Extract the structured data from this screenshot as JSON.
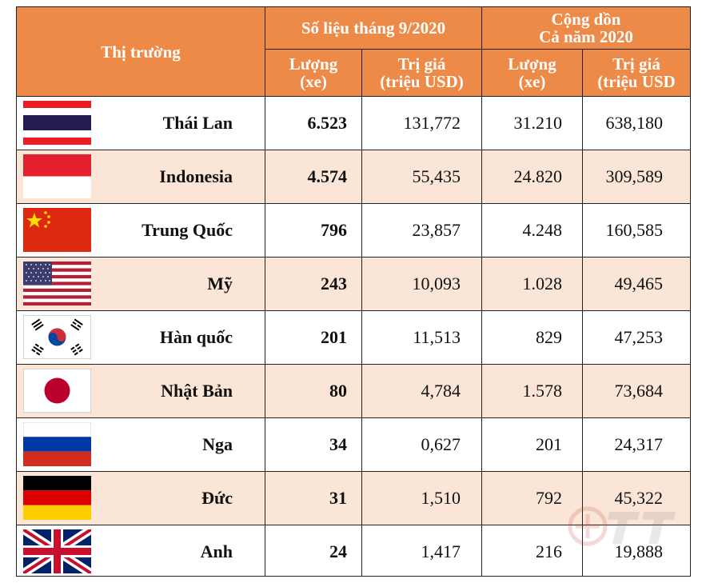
{
  "header": {
    "market": "Thị trường",
    "month_group": "Số liệu tháng 9/2020",
    "cumulative_line1": "Cộng dồn",
    "cumulative_line2": "Cả năm 2020",
    "qty_line1": "Lượng",
    "qty_line2": "(xe)",
    "val_line1": "Trị giá",
    "val_line2": "(triệu USD)",
    "cum_qty_line1": "Lượng",
    "cum_qty_line2": "(xe)",
    "cum_val_line1": "Trị giá",
    "cum_val_line2": "(triệu USD"
  },
  "rows": [
    {
      "country": "Thái Lan",
      "flag": "thailand-flag-icon",
      "qty": "6.523",
      "value": "131,772",
      "cum_qty": "31.210",
      "cum_value": "638,180"
    },
    {
      "country": "Indonesia",
      "flag": "indonesia-flag-icon",
      "qty": "4.574",
      "value": "55,435",
      "cum_qty": "24.820",
      "cum_value": "309,589"
    },
    {
      "country": "Trung Quốc",
      "flag": "china-flag-icon",
      "qty": "796",
      "value": "23,857",
      "cum_qty": "4.248",
      "cum_value": "160,585"
    },
    {
      "country": "Mỹ",
      "flag": "usa-flag-icon",
      "qty": "243",
      "value": "10,093",
      "cum_qty": "1.028",
      "cum_value": "49,465"
    },
    {
      "country": "Hàn quốc",
      "flag": "korea-flag-icon",
      "qty": "201",
      "value": "11,513",
      "cum_qty": "829",
      "cum_value": "47,253"
    },
    {
      "country": "Nhật Bản",
      "flag": "japan-flag-icon",
      "qty": "80",
      "value": "4,784",
      "cum_qty": "1.578",
      "cum_value": "73,684"
    },
    {
      "country": "Nga",
      "flag": "russia-flag-icon",
      "qty": "34",
      "value": "0,627",
      "cum_qty": "201",
      "cum_value": "24,317"
    },
    {
      "country": "Đức",
      "flag": "germany-flag-icon",
      "qty": "31",
      "value": "1,510",
      "cum_qty": "792",
      "cum_value": "45,322"
    },
    {
      "country": "Anh",
      "flag": "uk-flag-icon",
      "qty": "24",
      "value": "1,417",
      "cum_qty": "216",
      "cum_value": "19,888"
    }
  ],
  "colors": {
    "header_bg": "#ED8A47",
    "alt_row_bg": "#FBE5D6"
  }
}
